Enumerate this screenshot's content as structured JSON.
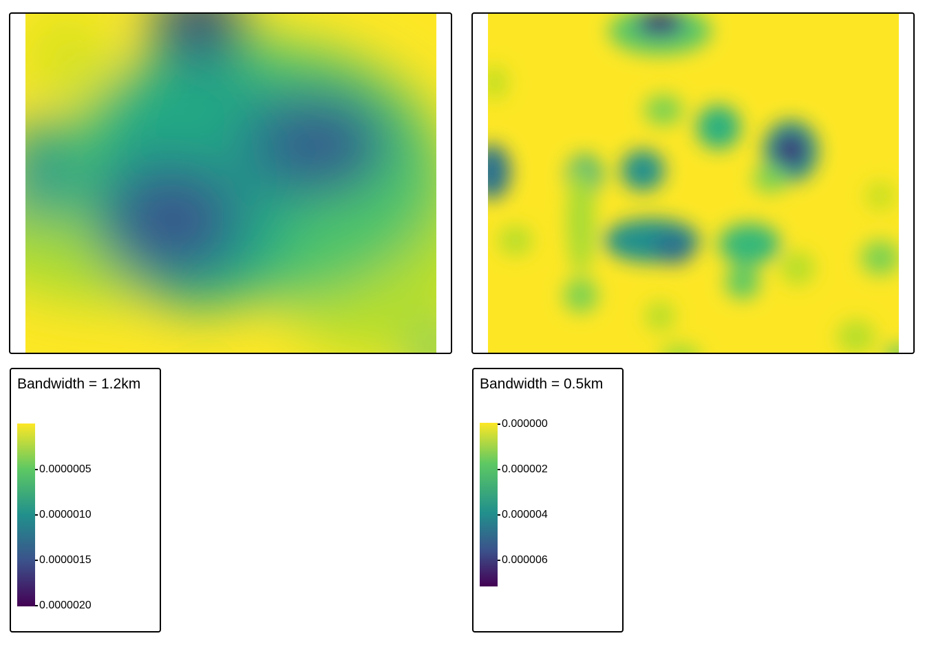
{
  "palette": [
    "#440154",
    "#3b528b",
    "#21908c",
    "#5dc863",
    "#fde725"
  ],
  "maps": [
    {
      "id": "left",
      "legend_title": "Bandwidth = 1.2km",
      "legend_ticks": [
        "0.0000005",
        "0.0000010",
        "0.0000015",
        "0.0000020"
      ],
      "legend_top_tick_shown": false,
      "scale": "density, high values dark",
      "description": "smooth broad density surface"
    },
    {
      "id": "right",
      "legend_title": "Bandwidth = 0.5km",
      "legend_ticks": [
        "0.000000",
        "0.000002",
        "0.000004",
        "0.000006"
      ],
      "legend_top_tick_shown": true,
      "scale": "density, high values dark",
      "description": "localized density hotspots"
    }
  ]
}
